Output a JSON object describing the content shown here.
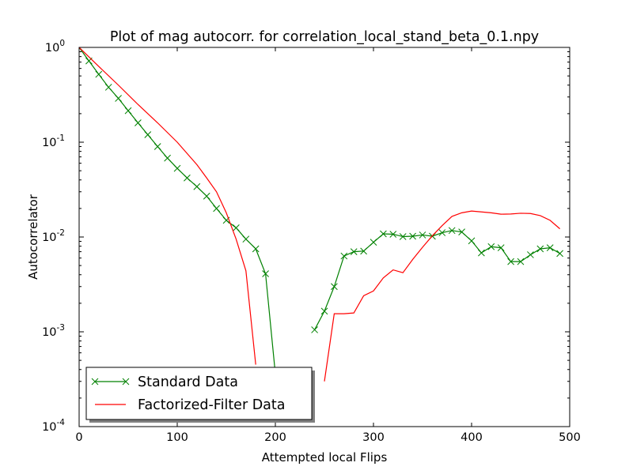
{
  "chart_data": {
    "type": "line",
    "title": "Plot of mag autocorr. for correlation_local_stand_beta_0.1.npy",
    "xlabel": "Attempted local Flips",
    "ylabel": "Autocorrelator",
    "xlim": [
      0,
      500
    ],
    "ylim": [
      0.0001,
      1
    ],
    "yscale": "log",
    "grid": false,
    "legend_position": "lower-left",
    "x_ticks": [
      {
        "value": 0,
        "label": "0"
      },
      {
        "value": 100,
        "label": "100"
      },
      {
        "value": 200,
        "label": "200"
      },
      {
        "value": 300,
        "label": "300"
      },
      {
        "value": 400,
        "label": "400"
      },
      {
        "value": 500,
        "label": "500"
      }
    ],
    "y_ticks": [
      {
        "value": 1,
        "base": "10",
        "exp": "0"
      },
      {
        "value": 0.1,
        "base": "10",
        "exp": "-1"
      },
      {
        "value": 0.01,
        "base": "10",
        "exp": "-2"
      },
      {
        "value": 0.001,
        "base": "10",
        "exp": "-3"
      },
      {
        "value": 0.0001,
        "base": "10",
        "exp": "-4"
      }
    ],
    "series": [
      {
        "name": "Standard Data",
        "color": "#008000",
        "marker": "x",
        "segments": [
          {
            "x": [
              0,
              10,
              20,
              30,
              40,
              50,
              60,
              70,
              80,
              90,
              100,
              110,
              120,
              130,
              140,
              150,
              160,
              170,
              180,
              190,
              200
            ],
            "y": [
              1.0,
              0.72,
              0.52,
              0.38,
              0.29,
              0.215,
              0.16,
              0.12,
              0.09,
              0.068,
              0.053,
              0.042,
              0.034,
              0.027,
              0.02,
              0.015,
              0.0125,
              0.0095,
              0.0075,
              0.0041,
              0.00036
            ]
          },
          {
            "x": [
              240,
              250,
              260,
              270,
              280,
              290,
              300,
              310,
              320,
              330,
              340,
              350,
              360,
              370,
              380,
              390,
              400,
              410,
              420,
              430,
              440,
              450,
              460,
              470,
              480,
              490
            ],
            "y": [
              0.00105,
              0.00165,
              0.003,
              0.0063,
              0.007,
              0.0071,
              0.0088,
              0.0108,
              0.0107,
              0.0101,
              0.0102,
              0.0105,
              0.0102,
              0.0111,
              0.0117,
              0.0113,
              0.0091,
              0.0068,
              0.0079,
              0.0077,
              0.0055,
              0.0055,
              0.0065,
              0.0075,
              0.0077,
              0.0067
            ]
          }
        ]
      },
      {
        "name": "Factorized-Filter Data",
        "color": "#ff0000",
        "marker": "none",
        "segments": [
          {
            "x": [
              0,
              20,
              40,
              60,
              80,
              100,
              120,
              130,
              140,
              150,
              160,
              170,
              180
            ],
            "y": [
              1.0,
              0.63,
              0.4,
              0.25,
              0.16,
              0.1,
              0.058,
              0.042,
              0.03,
              0.018,
              0.0095,
              0.0044,
              0.00045
            ]
          },
          {
            "x": [
              250,
              260,
              270,
              280,
              290,
              300,
              310,
              320,
              330,
              340,
              350,
              360,
              370,
              380,
              390,
              400,
              410,
              420,
              430,
              440,
              450,
              460,
              470,
              480,
              490
            ],
            "y": [
              0.0003,
              0.00155,
              0.00155,
              0.00158,
              0.0024,
              0.0027,
              0.0037,
              0.0045,
              0.0042,
              0.0058,
              0.0078,
              0.0103,
              0.0132,
              0.0165,
              0.018,
              0.0188,
              0.0184,
              0.018,
              0.0174,
              0.0175,
              0.0178,
              0.0177,
              0.0168,
              0.015,
              0.0122
            ]
          }
        ]
      }
    ]
  }
}
